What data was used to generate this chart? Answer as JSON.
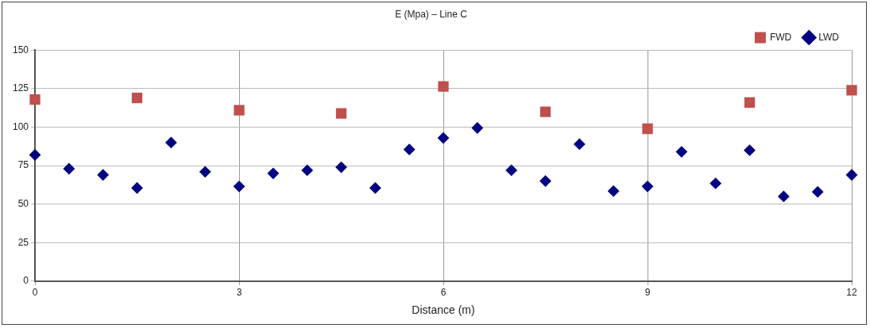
{
  "chart_data": {
    "type": "scatter",
    "title": "E (Mpa) – Line C",
    "xlabel": "Distance (m)",
    "xlim": [
      0,
      12
    ],
    "xticks": [
      0,
      3,
      6,
      9,
      12
    ],
    "ylim": [
      0,
      150
    ],
    "yticks": [
      0,
      25,
      50,
      75,
      100,
      125,
      150
    ],
    "grid": true,
    "legend": "top right",
    "series": [
      {
        "name": "FWD",
        "color": "#c0504d",
        "marker": "square",
        "x": [
          0,
          1.5,
          3,
          4.5,
          6,
          7.5,
          9,
          10.5,
          12
        ],
        "values": [
          118,
          119,
          111,
          109,
          126.5,
          110,
          99,
          116,
          124
        ]
      },
      {
        "name": "LWD",
        "color": "#000080",
        "marker": "diamond",
        "x": [
          0,
          0.5,
          1,
          1.5,
          2,
          2.5,
          3,
          3.5,
          4,
          4.5,
          5,
          5.5,
          6,
          6.5,
          7,
          7.5,
          8,
          8.5,
          9,
          9.5,
          10,
          10.5,
          11,
          11.5,
          12
        ],
        "values": [
          82,
          73,
          69,
          60.5,
          90,
          71,
          61.5,
          70,
          72,
          74,
          60.5,
          85.5,
          93,
          99.5,
          72,
          65,
          89,
          58.5,
          61.5,
          84,
          63.5,
          85,
          55,
          58,
          69
        ]
      }
    ]
  }
}
